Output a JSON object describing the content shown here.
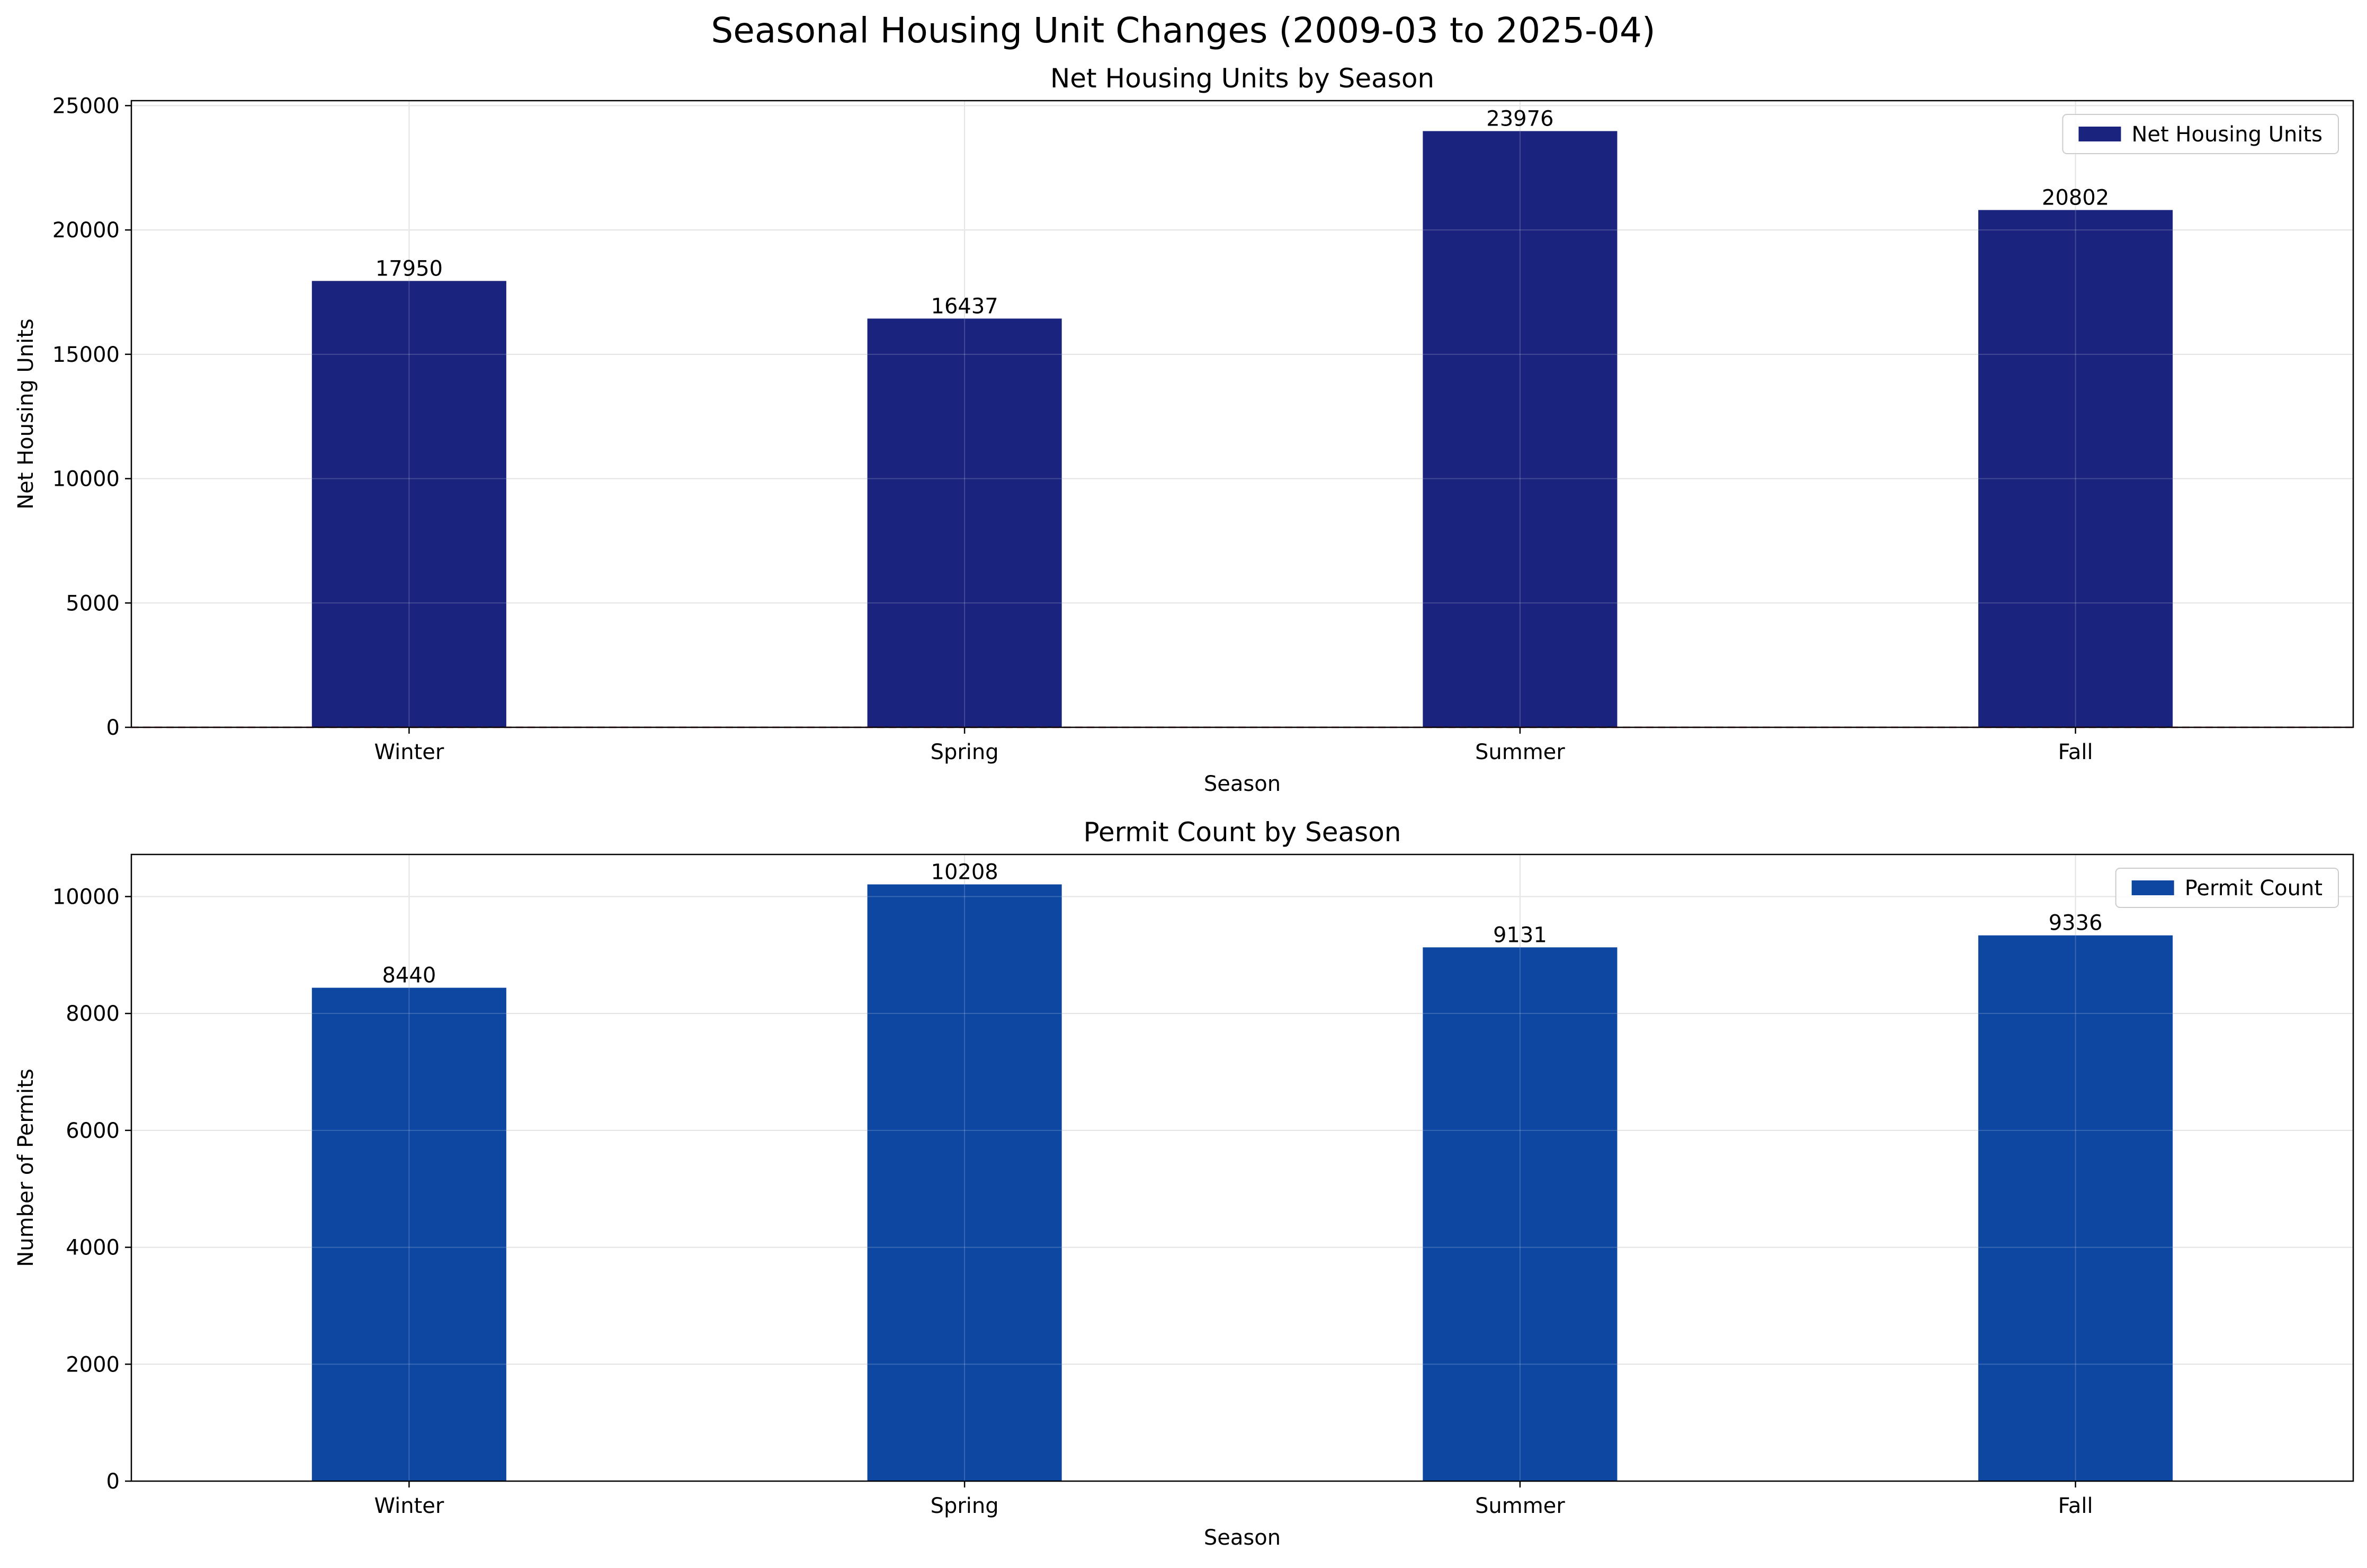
{
  "figure": {
    "suptitle": "Seasonal Housing Unit Changes (2009-03 to 2025-04)"
  },
  "chart_data": [
    {
      "type": "bar",
      "title": "Net Housing Units by Season",
      "xlabel": "Season",
      "ylabel": "Net Housing Units",
      "categories": [
        "Winter",
        "Spring",
        "Summer",
        "Fall"
      ],
      "series": [
        {
          "name": "Net Housing Units",
          "values": [
            17950,
            16437,
            23976,
            20802
          ],
          "color": "#1a237e"
        }
      ],
      "value_labels": [
        "17950",
        "16437",
        "23976",
        "20802"
      ],
      "ylim": [
        0,
        25200
      ],
      "yticks": [
        0,
        5000,
        10000,
        15000,
        20000,
        25000
      ],
      "ytick_labels": [
        "0",
        "5000",
        "10000",
        "15000",
        "20000",
        "25000"
      ],
      "grid": true,
      "legend": "upper right",
      "zero_line": {
        "value": 0,
        "style": "dashed",
        "color": "#d32f2f"
      }
    },
    {
      "type": "bar",
      "title": "Permit Count by Season",
      "xlabel": "Season",
      "ylabel": "Number of Permits",
      "categories": [
        "Winter",
        "Spring",
        "Summer",
        "Fall"
      ],
      "series": [
        {
          "name": "Permit Count",
          "values": [
            8440,
            10208,
            9131,
            9336
          ],
          "color": "#0d47a1"
        }
      ],
      "value_labels": [
        "8440",
        "10208",
        "9131",
        "9336"
      ],
      "ylim": [
        0,
        10720
      ],
      "yticks": [
        0,
        2000,
        4000,
        6000,
        8000,
        10000
      ],
      "ytick_labels": [
        "0",
        "2000",
        "4000",
        "6000",
        "8000",
        "10000"
      ],
      "grid": true,
      "legend": "upper right"
    }
  ]
}
